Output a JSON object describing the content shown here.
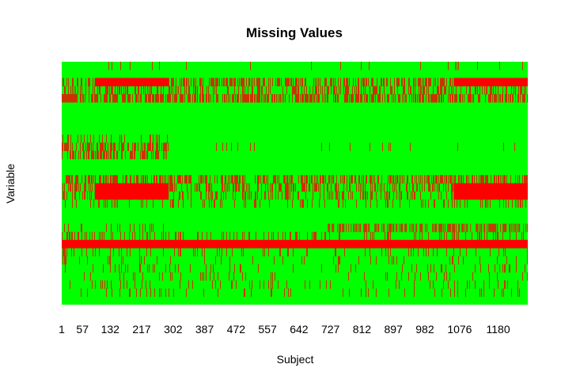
{
  "chart_data": {
    "type": "heatmap",
    "title": "Missing Values",
    "xlabel": "Subject",
    "ylabel": "Variable",
    "x_tick_labels": [
      "1",
      "57",
      "132",
      "217",
      "302",
      "387",
      "472",
      "557",
      "642",
      "727",
      "812",
      "897",
      "982",
      "1076",
      "1180"
    ],
    "x_tick_values": [
      1,
      57,
      132,
      217,
      302,
      387,
      472,
      557,
      642,
      727,
      812,
      897,
      982,
      1076,
      1180
    ],
    "x_range": [
      1,
      1260
    ],
    "n_variables": 30,
    "colors": {
      "present": "#00ff00",
      "missing": "#ff0000"
    },
    "missing_segments": [
      {
        "variable": 1,
        "from": 1,
        "to": 1260,
        "density": 0.03
      },
      {
        "variable": 3,
        "from": 1,
        "to": 1260,
        "density": 0.5
      },
      {
        "variable": 3,
        "from": 90,
        "to": 290,
        "density": 1.0
      },
      {
        "variable": 3,
        "from": 1060,
        "to": 1260,
        "density": 1.0
      },
      {
        "variable": 4,
        "from": 1,
        "to": 1260,
        "density": 0.35
      },
      {
        "variable": 5,
        "from": 1,
        "to": 1260,
        "density": 0.6
      },
      {
        "variable": 10,
        "from": 1,
        "to": 290,
        "density": 0.25
      },
      {
        "variable": 11,
        "from": 1,
        "to": 290,
        "density": 0.55
      },
      {
        "variable": 12,
        "from": 1,
        "to": 290,
        "density": 0.55
      },
      {
        "variable": 11,
        "from": 290,
        "to": 1260,
        "density": 0.04
      },
      {
        "variable": 15,
        "from": 1,
        "to": 1260,
        "density": 0.5
      },
      {
        "variable": 16,
        "from": 90,
        "to": 290,
        "density": 1.0
      },
      {
        "variable": 16,
        "from": 1060,
        "to": 1260,
        "density": 1.0
      },
      {
        "variable": 16,
        "from": 1,
        "to": 1260,
        "density": 0.35
      },
      {
        "variable": 17,
        "from": 90,
        "to": 290,
        "density": 1.0
      },
      {
        "variable": 17,
        "from": 1060,
        "to": 1260,
        "density": 1.0
      },
      {
        "variable": 17,
        "from": 1,
        "to": 1260,
        "density": 0.3
      },
      {
        "variable": 18,
        "from": 1,
        "to": 1260,
        "density": 0.15
      },
      {
        "variable": 21,
        "from": 1,
        "to": 290,
        "density": 0.15
      },
      {
        "variable": 21,
        "from": 720,
        "to": 1260,
        "density": 0.55
      },
      {
        "variable": 22,
        "from": 1,
        "to": 1260,
        "density": 0.2
      },
      {
        "variable": 23,
        "from": 1,
        "to": 1260,
        "density": 1.0
      },
      {
        "variable": 24,
        "from": 1,
        "to": 1260,
        "density": 0.12
      },
      {
        "variable": 25,
        "from": 1,
        "to": 1260,
        "density": 0.1
      },
      {
        "variable": 26,
        "from": 1,
        "to": 1260,
        "density": 0.08
      },
      {
        "variable": 27,
        "from": 1,
        "to": 1260,
        "density": 0.06
      },
      {
        "variable": 28,
        "from": 1,
        "to": 1260,
        "density": 0.08
      },
      {
        "variable": 29,
        "from": 1,
        "to": 1260,
        "density": 0.1
      }
    ]
  }
}
